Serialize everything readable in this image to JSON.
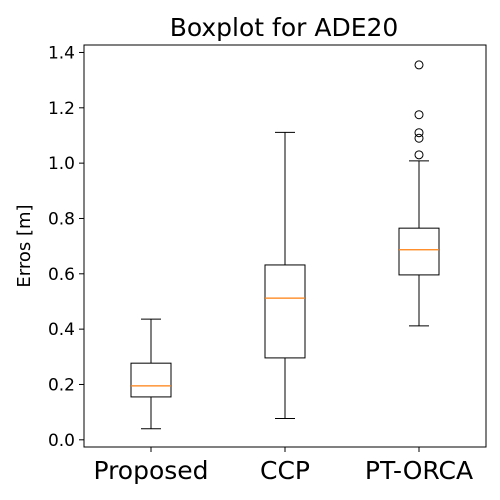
{
  "chart_data": {
    "type": "boxplot",
    "title": "Boxplot for ADE20",
    "xlabel": "",
    "ylabel": "Erros [m]",
    "ylim": [
      -0.026,
      1.427
    ],
    "yticks": [
      "0.0",
      "0.2",
      "0.4",
      "0.6",
      "0.8",
      "1.0",
      "1.2",
      "1.4"
    ],
    "grid": false,
    "colors": {
      "box": "#000000",
      "median": "#ff7f0e",
      "flier": "#000000"
    },
    "categories": [
      "Proposed",
      "CCP",
      "PT-ORCA"
    ],
    "boxes": [
      {
        "name": "Proposed",
        "whisker_low": 0.04,
        "q1": 0.155,
        "median": 0.195,
        "q3": 0.277,
        "whisker_high": 0.436,
        "fliers": []
      },
      {
        "name": "CCP",
        "whisker_low": 0.077,
        "q1": 0.296,
        "median": 0.512,
        "q3": 0.632,
        "whisker_high": 1.111,
        "fliers": []
      },
      {
        "name": "PT-ORCA",
        "whisker_low": 0.412,
        "q1": 0.596,
        "median": 0.687,
        "q3": 0.765,
        "whisker_high": 1.008,
        "fliers": [
          1.03,
          1.09,
          1.11,
          1.175,
          1.355
        ]
      }
    ]
  }
}
